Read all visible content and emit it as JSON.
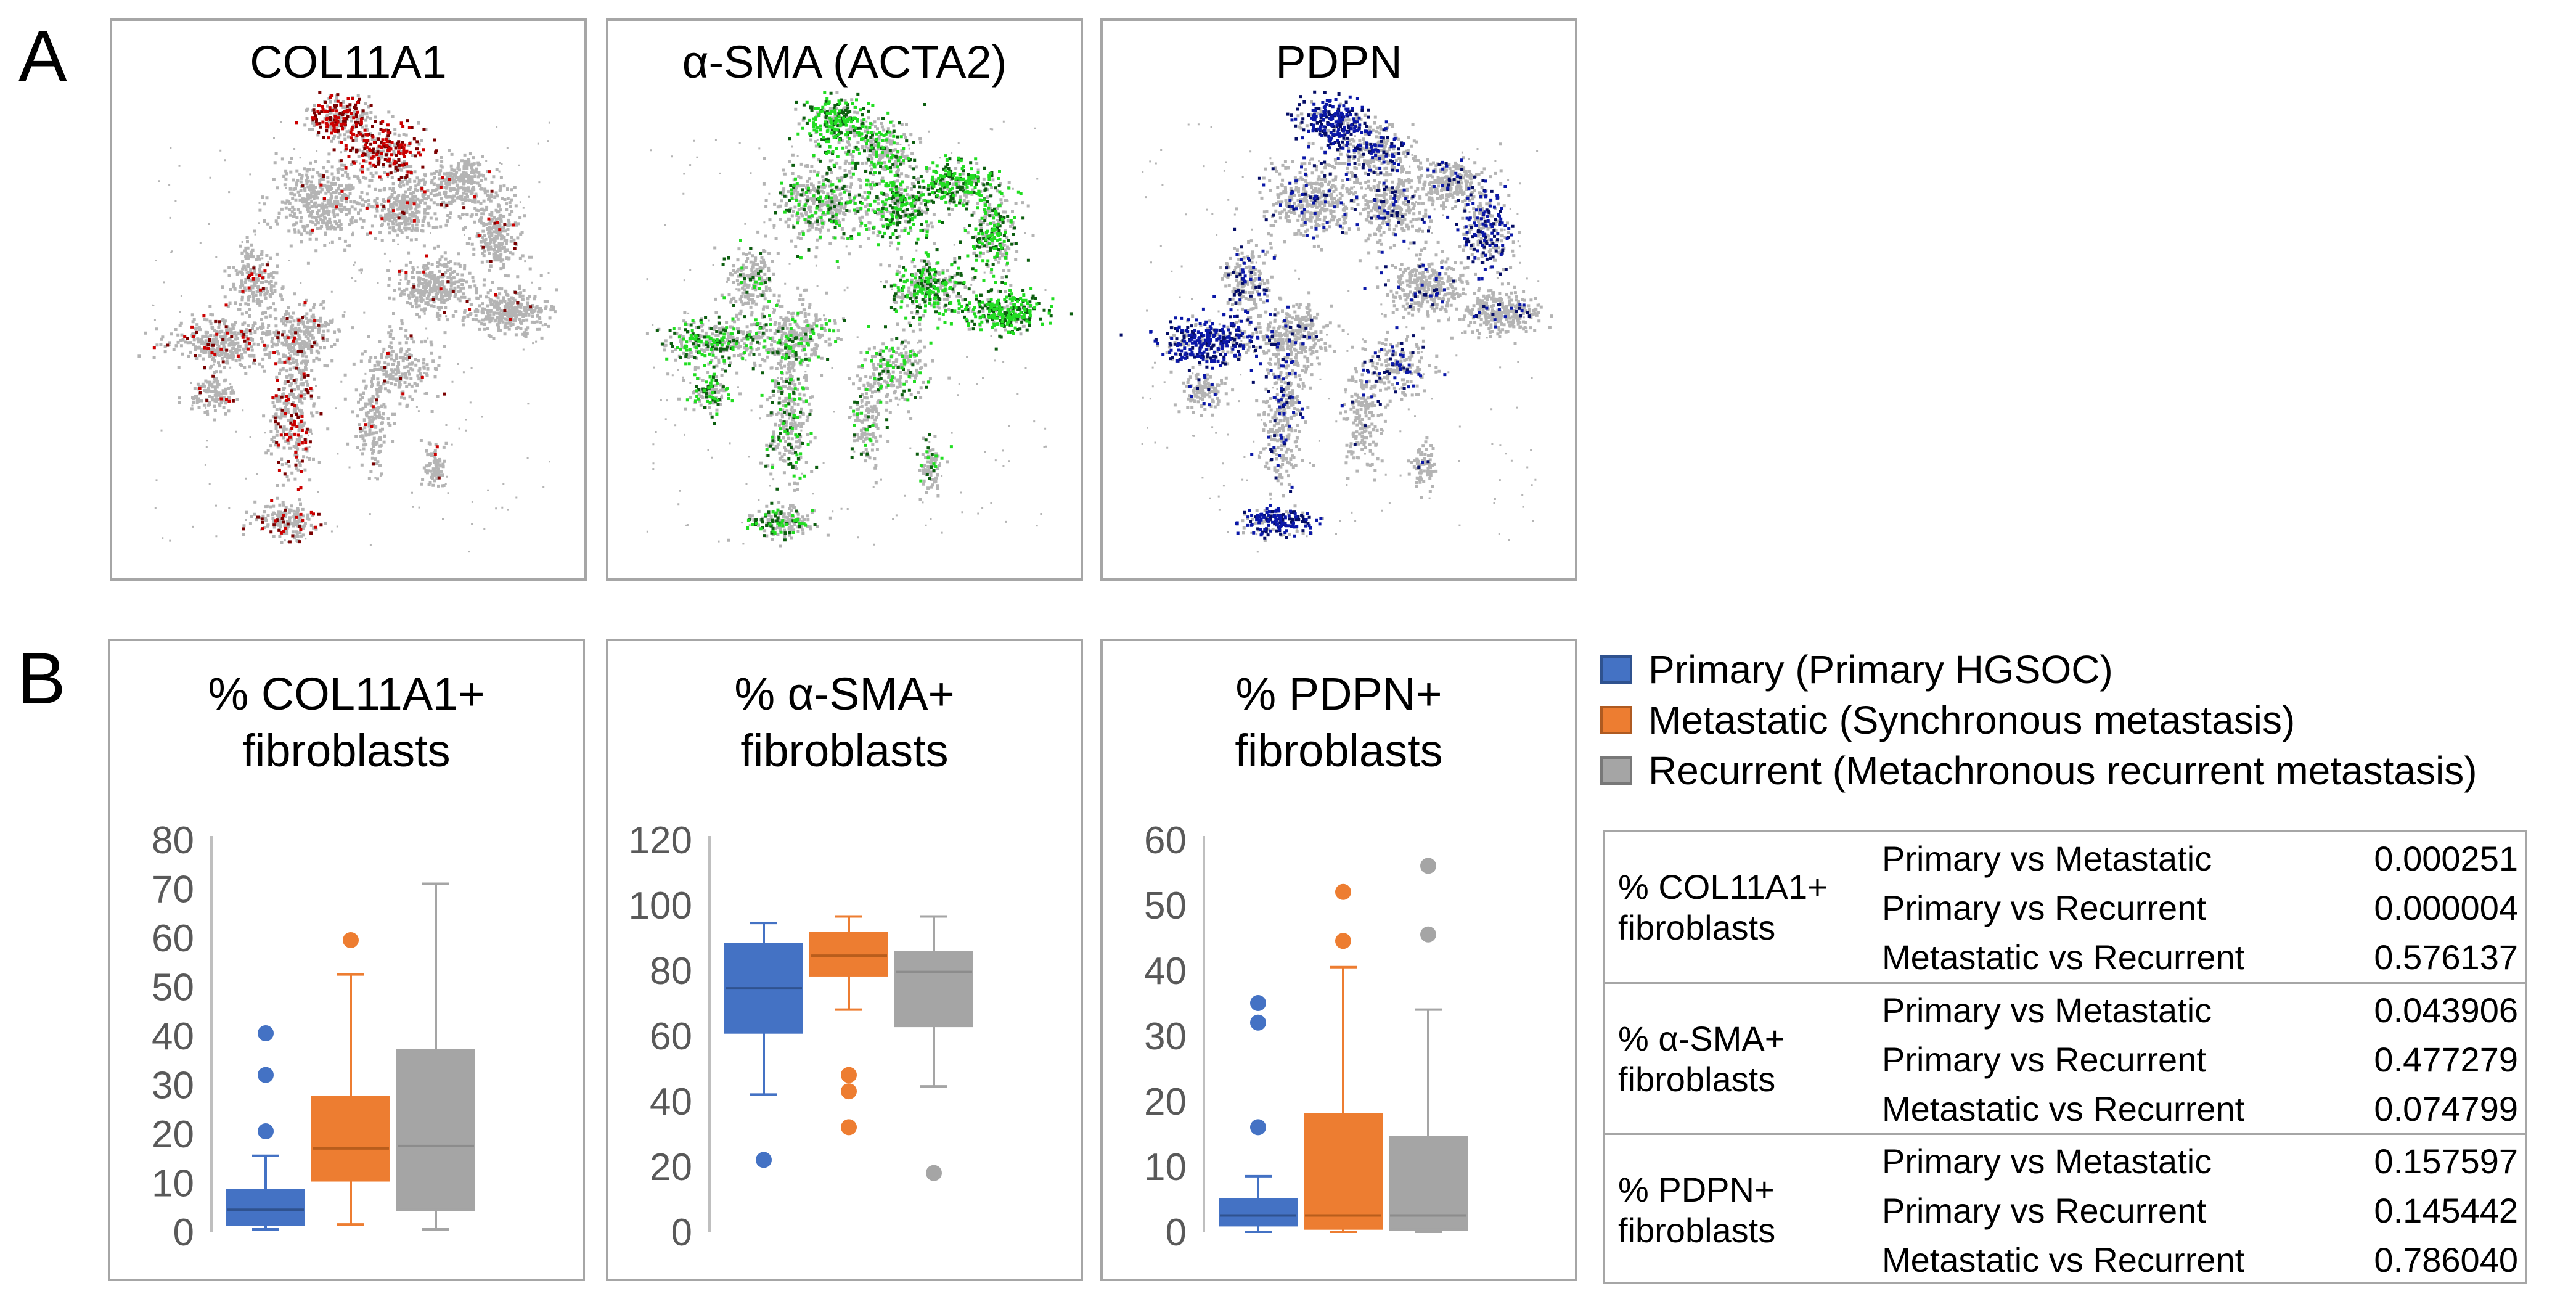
{
  "panel_a": {
    "label": "A",
    "plots": [
      {
        "title": "COL11A1",
        "color": "#cc0000",
        "dark": "#7a0000"
      },
      {
        "title": "α-SMA (ACTA2)",
        "color": "#22dd22",
        "dark": "#0d5e10"
      },
      {
        "title": "PDPN",
        "color": "#0b18a8",
        "dark": "#050d66"
      }
    ],
    "background_color": "#b4b4b4"
  },
  "panel_b": {
    "label": "B",
    "legend": [
      {
        "label": "Primary (Primary HGSOC)",
        "color": "#4472c4"
      },
      {
        "label": "Metastatic (Synchronous metastasis)",
        "color": "#ed7d31"
      },
      {
        "label": "Recurrent (Metachronous recurrent metastasis)",
        "color": "#a5a5a5"
      }
    ],
    "stats": [
      {
        "label_line1": "% COL11A1+",
        "label_line2": "fibroblasts",
        "rows": [
          {
            "comparison": "Primary vs Metastatic",
            "p": "0.000251"
          },
          {
            "comparison": "Primary vs Recurrent",
            "p": "0.000004"
          },
          {
            "comparison": "Metastatic vs Recurrent",
            "p": "0.576137"
          }
        ]
      },
      {
        "label_line1": "% α-SMA+",
        "label_line2": "fibroblasts",
        "rows": [
          {
            "comparison": "Primary vs Metastatic",
            "p": "0.043906"
          },
          {
            "comparison": "Primary vs Recurrent",
            "p": "0.477279"
          },
          {
            "comparison": "Metastatic vs Recurrent",
            "p": "0.074799"
          }
        ]
      },
      {
        "label_line1": "% PDPN+",
        "label_line2": "fibroblasts",
        "rows": [
          {
            "comparison": "Primary vs Metastatic",
            "p": "0.157597"
          },
          {
            "comparison": "Primary vs Recurrent",
            "p": "0.145442"
          },
          {
            "comparison": "Metastatic vs Recurrent",
            "p": "0.786040"
          }
        ]
      }
    ]
  },
  "chart_data": [
    {
      "type": "box",
      "title_line1": "% COL11A1+",
      "title_line2": "fibroblasts",
      "ylim": [
        0,
        80
      ],
      "yticks": [
        "0",
        "10",
        "20",
        "30",
        "40",
        "50",
        "60",
        "70",
        "80"
      ],
      "series": [
        {
          "name": "Primary",
          "color": "#4472c4",
          "whisker_low": 0.5,
          "q1": 1.5,
          "median": 4.5,
          "q3": 8.5,
          "whisker_high": 15.5,
          "outliers": [
            20.5,
            32,
            40.5
          ]
        },
        {
          "name": "Metastatic",
          "color": "#ed7d31",
          "whisker_low": 1.5,
          "q1": 10.5,
          "median": 17,
          "q3": 27.5,
          "whisker_high": 52.5,
          "outliers": [
            59.5
          ]
        },
        {
          "name": "Recurrent",
          "color": "#a5a5a5",
          "whisker_low": 0.5,
          "q1": 4.5,
          "median": 17.5,
          "q3": 37,
          "whisker_high": 71,
          "outliers": []
        }
      ]
    },
    {
      "type": "box",
      "title_line1": "% α-SMA+",
      "title_line2": "fibroblasts",
      "ylim": [
        0,
        120
      ],
      "yticks": [
        "0",
        "20",
        "40",
        "60",
        "80",
        "100",
        "120"
      ],
      "series": [
        {
          "name": "Primary",
          "color": "#4472c4",
          "whisker_low": 42,
          "q1": 61,
          "median": 74.5,
          "q3": 88,
          "whisker_high": 94.5,
          "outliers": [
            22
          ]
        },
        {
          "name": "Metastatic",
          "color": "#ed7d31",
          "whisker_low": 68,
          "q1": 78.5,
          "median": 84.5,
          "q3": 91.5,
          "whisker_high": 96.5,
          "outliers": [
            32,
            43,
            48
          ]
        },
        {
          "name": "Recurrent",
          "color": "#a5a5a5",
          "whisker_low": 44.5,
          "q1": 63,
          "median": 79.5,
          "q3": 85.5,
          "whisker_high": 96.5,
          "outliers": [
            18
          ]
        }
      ]
    },
    {
      "type": "box",
      "title_line1": "% PDPN+",
      "title_line2": "fibroblasts",
      "ylim": [
        0,
        60
      ],
      "yticks": [
        "0",
        "10",
        "20",
        "30",
        "40",
        "50",
        "60"
      ],
      "series": [
        {
          "name": "Primary",
          "color": "#4472c4",
          "whisker_low": 0,
          "q1": 1,
          "median": 2.5,
          "q3": 5,
          "whisker_high": 8.5,
          "outliers": [
            16,
            32,
            35
          ]
        },
        {
          "name": "Metastatic",
          "color": "#ed7d31",
          "whisker_low": 0,
          "q1": 0.5,
          "median": 2.5,
          "q3": 18,
          "whisker_high": 40.5,
          "outliers": [
            44.5,
            52
          ]
        },
        {
          "name": "Recurrent",
          "color": "#a5a5a5",
          "whisker_low": 0,
          "q1": 0.3,
          "median": 2.5,
          "q3": 14.5,
          "whisker_high": 34,
          "outliers": [
            45.5,
            56
          ]
        }
      ]
    }
  ]
}
